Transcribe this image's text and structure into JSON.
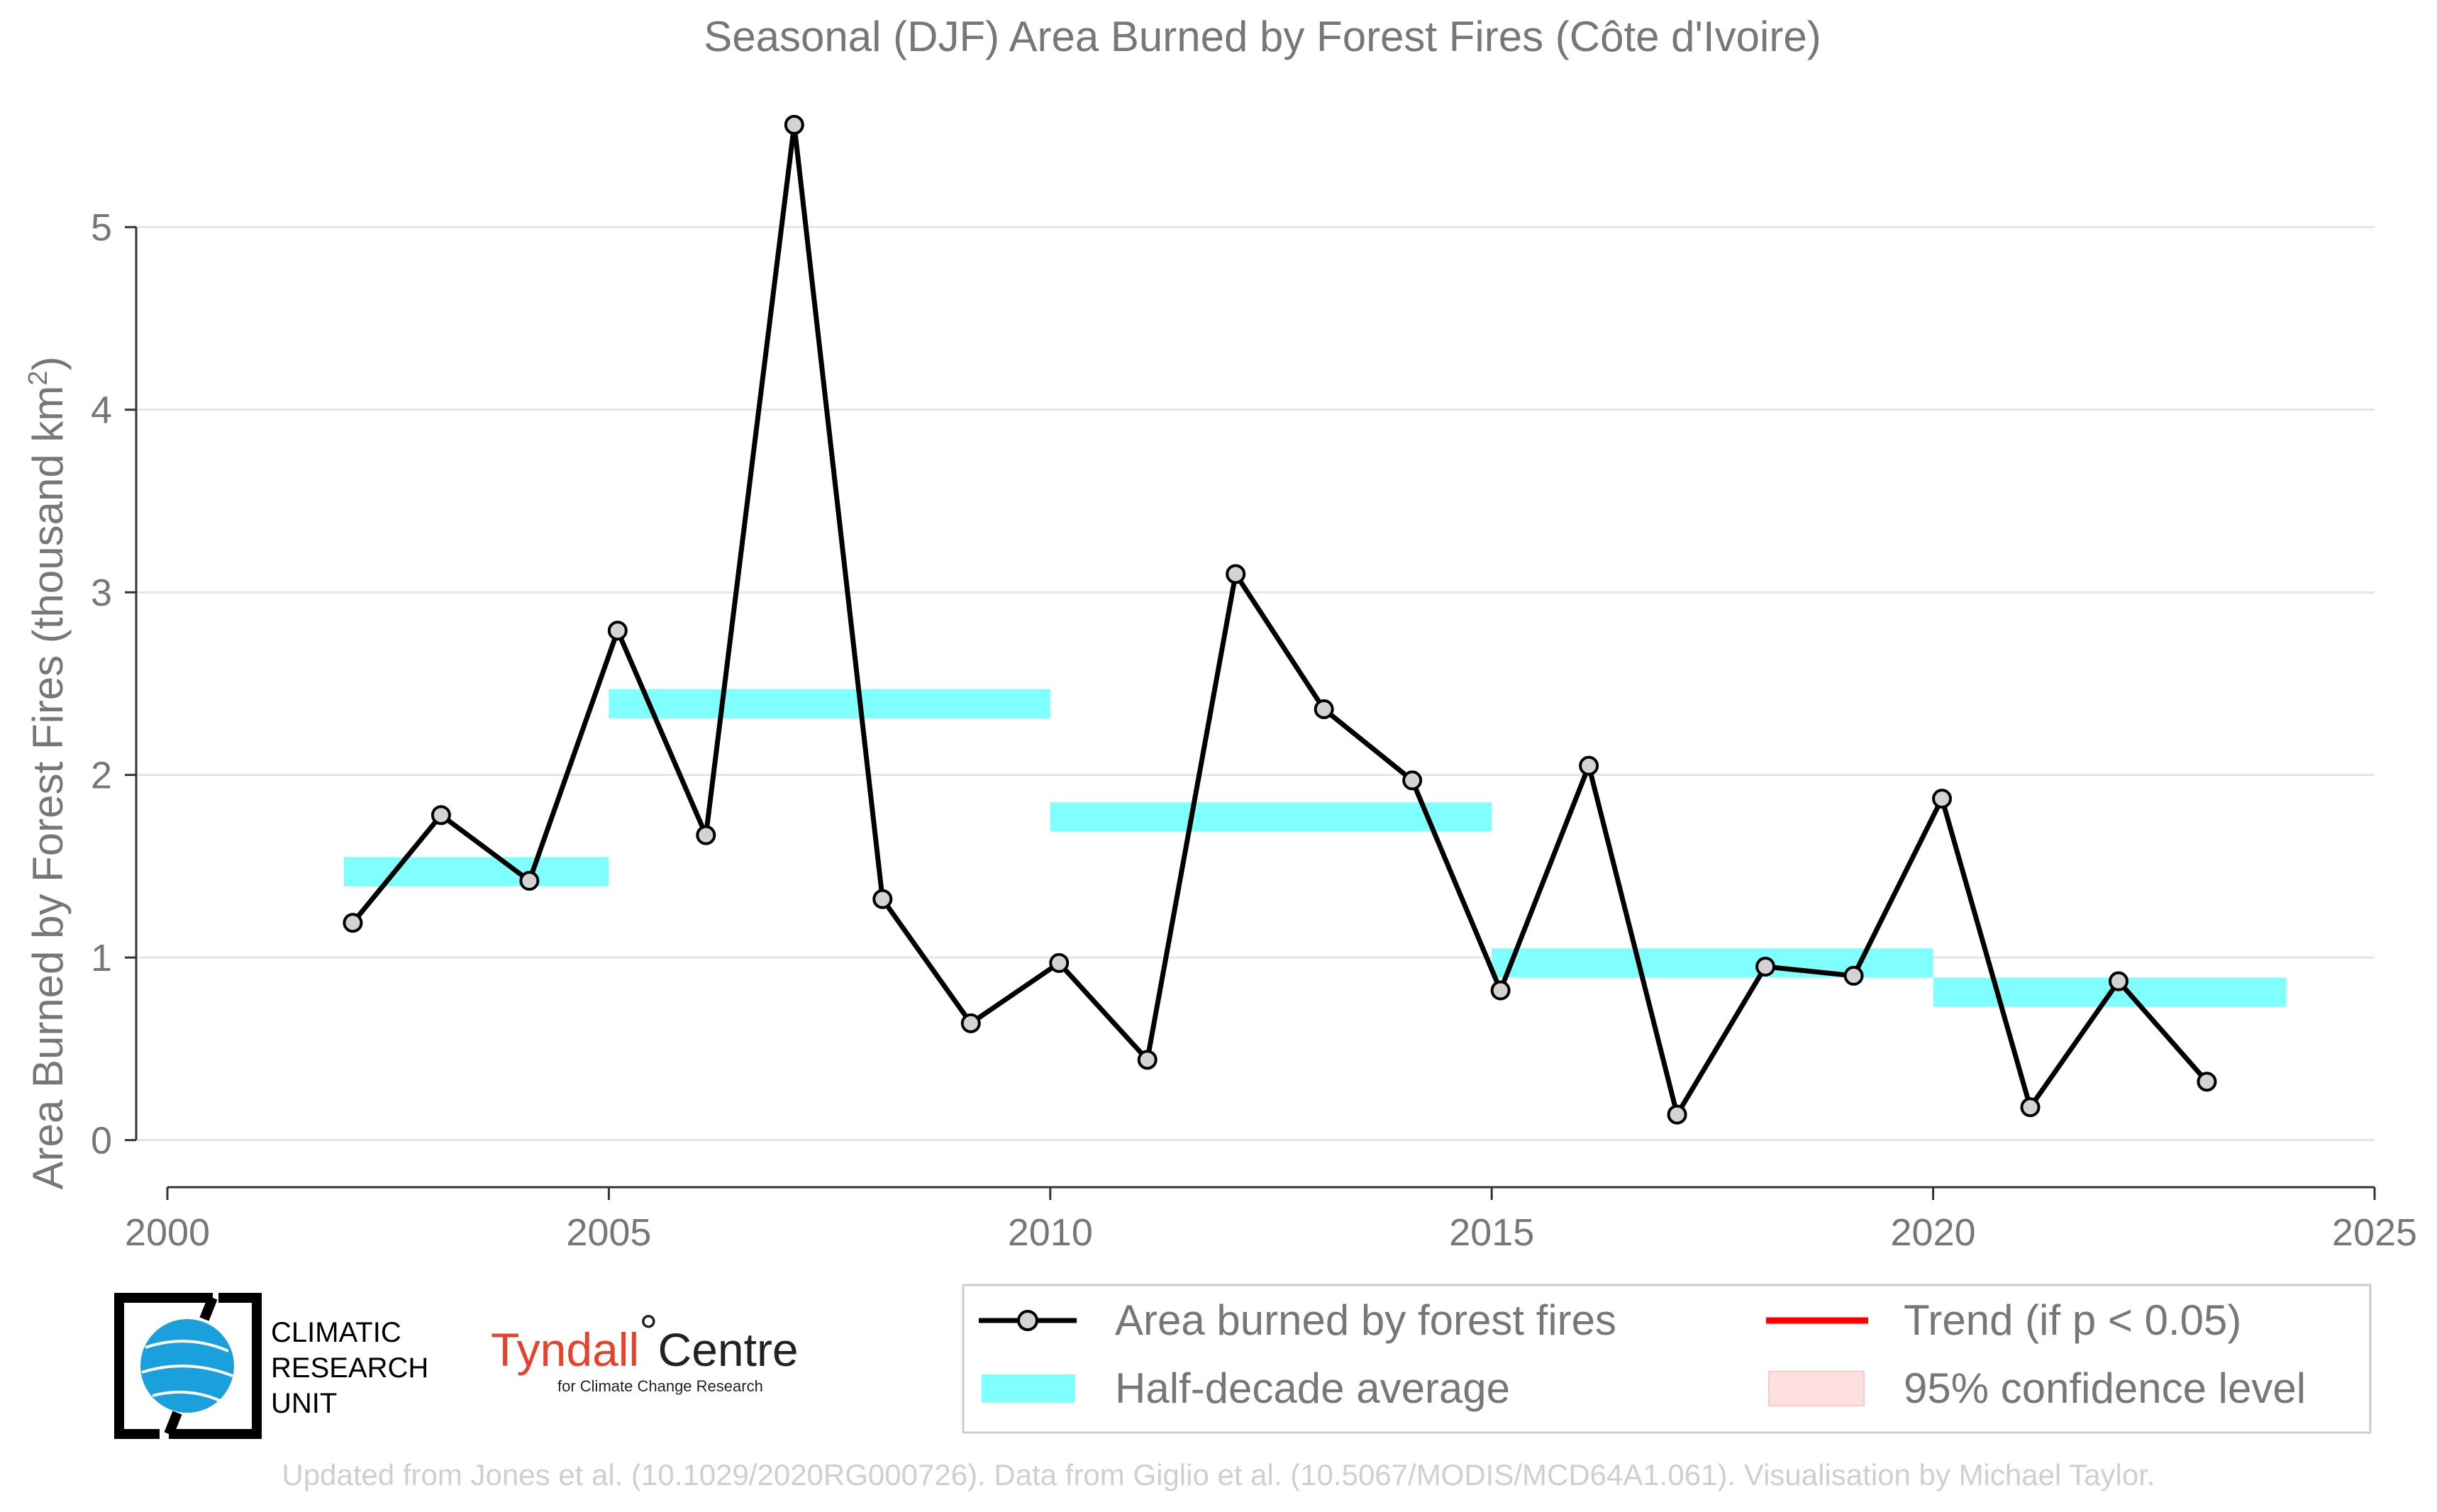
{
  "chart_data": {
    "type": "line",
    "title": "Seasonal (DJF) Area Burned by Forest Fires (Côte d'Ivoire)",
    "ylabel": "Area Burned by Forest Fires (thousand km",
    "ylabel_sup": "2",
    "ylabel_close": ")",
    "xlim": [
      2000,
      2025
    ],
    "ylim": [
      -0.25,
      5.7
    ],
    "xticks": [
      "2000",
      "2005",
      "2010",
      "2015",
      "2020",
      "2025"
    ],
    "yticks": [
      "0",
      "1",
      "2",
      "3",
      "4",
      "5"
    ],
    "grid": "horizontal",
    "series": [
      {
        "name": "Area burned by forest fires",
        "color": "#000000",
        "marker_fill": "#d3d3d3",
        "x": [
          2002.1,
          2003.1,
          2004.1,
          2005.1,
          2006.1,
          2007.1,
          2008.1,
          2009.1,
          2010.1,
          2011.1,
          2012.1,
          2013.1,
          2014.1,
          2015.1,
          2016.1,
          2017.1,
          2018.1,
          2019.1,
          2020.1,
          2021.1,
          2022.1,
          2023.1
        ],
        "y": [
          1.19,
          1.78,
          1.42,
          2.79,
          1.67,
          5.56,
          1.32,
          0.64,
          0.97,
          0.44,
          3.1,
          2.36,
          1.97,
          0.82,
          2.05,
          0.14,
          0.95,
          0.9,
          1.87,
          0.18,
          0.87,
          0.32
        ]
      }
    ],
    "half_decade": {
      "name": "Half-decade average",
      "color": "#80ffff",
      "bands": [
        {
          "x0": 2002.0,
          "x1": 2005.0,
          "y0": 1.39,
          "y1": 1.55
        },
        {
          "x0": 2005.0,
          "x1": 2010.0,
          "y0": 2.31,
          "y1": 2.47
        },
        {
          "x0": 2010.0,
          "x1": 2015.0,
          "y0": 1.69,
          "y1": 1.85
        },
        {
          "x0": 2015.0,
          "x1": 2020.0,
          "y0": 0.89,
          "y1": 1.05
        },
        {
          "x0": 2020.0,
          "x1": 2024.0,
          "y0": 0.73,
          "y1": 0.89
        }
      ]
    },
    "legend": {
      "placement": "bottom-right",
      "items": [
        {
          "label": "Area burned by forest fires",
          "kind": "line-marker",
          "color": "#000000"
        },
        {
          "label": "Trend (if p < 0.05)",
          "kind": "line",
          "color": "#ff0000"
        },
        {
          "label": "Half-decade average",
          "kind": "band",
          "color": "#80ffff"
        },
        {
          "label": "95% confidence level",
          "kind": "band",
          "color": "#ffe0e0"
        }
      ]
    }
  },
  "logos": {
    "cru_lines": [
      "CLIMATIC",
      "RESEARCH",
      "UNIT"
    ],
    "tyndall_name": "Tyndall",
    "tyndall_degree": "°",
    "tyndall_centre": "Centre",
    "tyndall_sub": "for Climate Change Research"
  },
  "footer": "Updated from Jones et al. (10.1029/2020RG000726). Data from Giglio et al. (10.5067/MODIS/MCD64A1.061). Visualisation by Michael Taylor."
}
